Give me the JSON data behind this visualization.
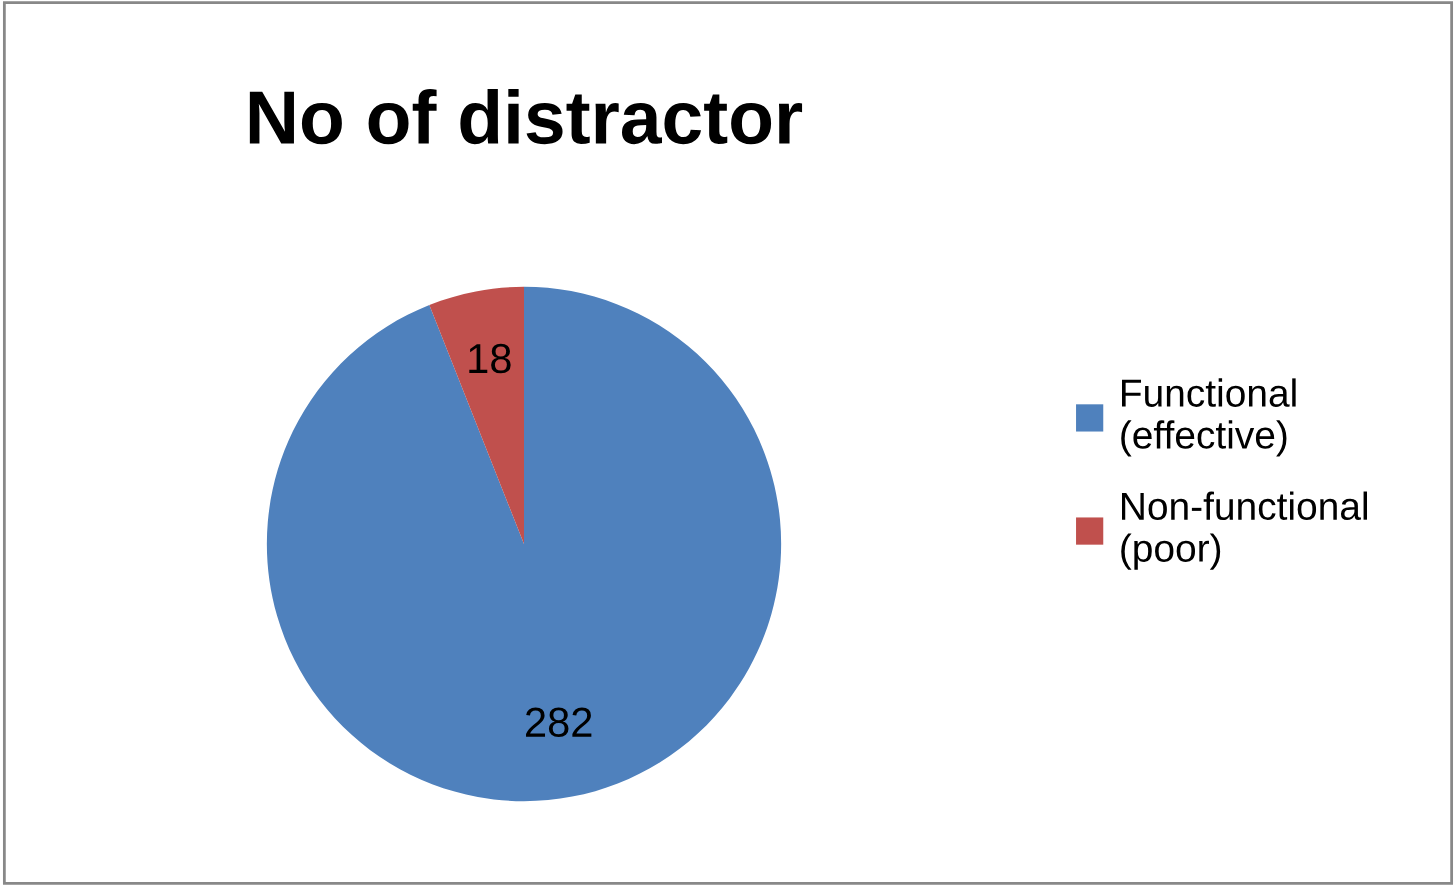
{
  "chart_data": {
    "type": "pie",
    "title": "No of distractor",
    "categories": [
      "Functional (effective)",
      "Non-functional (poor)"
    ],
    "values": [
      282,
      18
    ],
    "colors": [
      "#4f81bd",
      "#c0504d"
    ],
    "data_labels": true,
    "legend": "right"
  }
}
